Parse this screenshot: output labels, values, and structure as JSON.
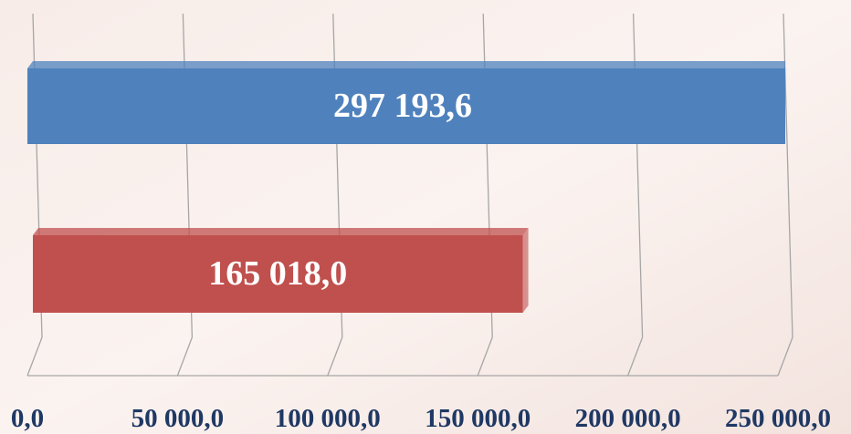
{
  "chart_data": {
    "type": "bar",
    "orientation": "horizontal",
    "categories": [
      null,
      null
    ],
    "values": [
      297193.6,
      165018.0
    ],
    "value_labels": [
      "297 193,6",
      "165 018,0"
    ],
    "colors": [
      "#4f81bd",
      "#c0504d"
    ],
    "xlim": [
      0,
      250000
    ],
    "xticks": [
      {
        "value": 0,
        "label": "0,0"
      },
      {
        "value": 50000,
        "label": "50 000,0"
      },
      {
        "value": 100000,
        "label": "100 000,0"
      },
      {
        "value": 150000,
        "label": "150 000,0"
      },
      {
        "value": 200000,
        "label": "200 000,0"
      },
      {
        "value": 250000,
        "label": "250 000,0"
      }
    ],
    "grid": true
  }
}
